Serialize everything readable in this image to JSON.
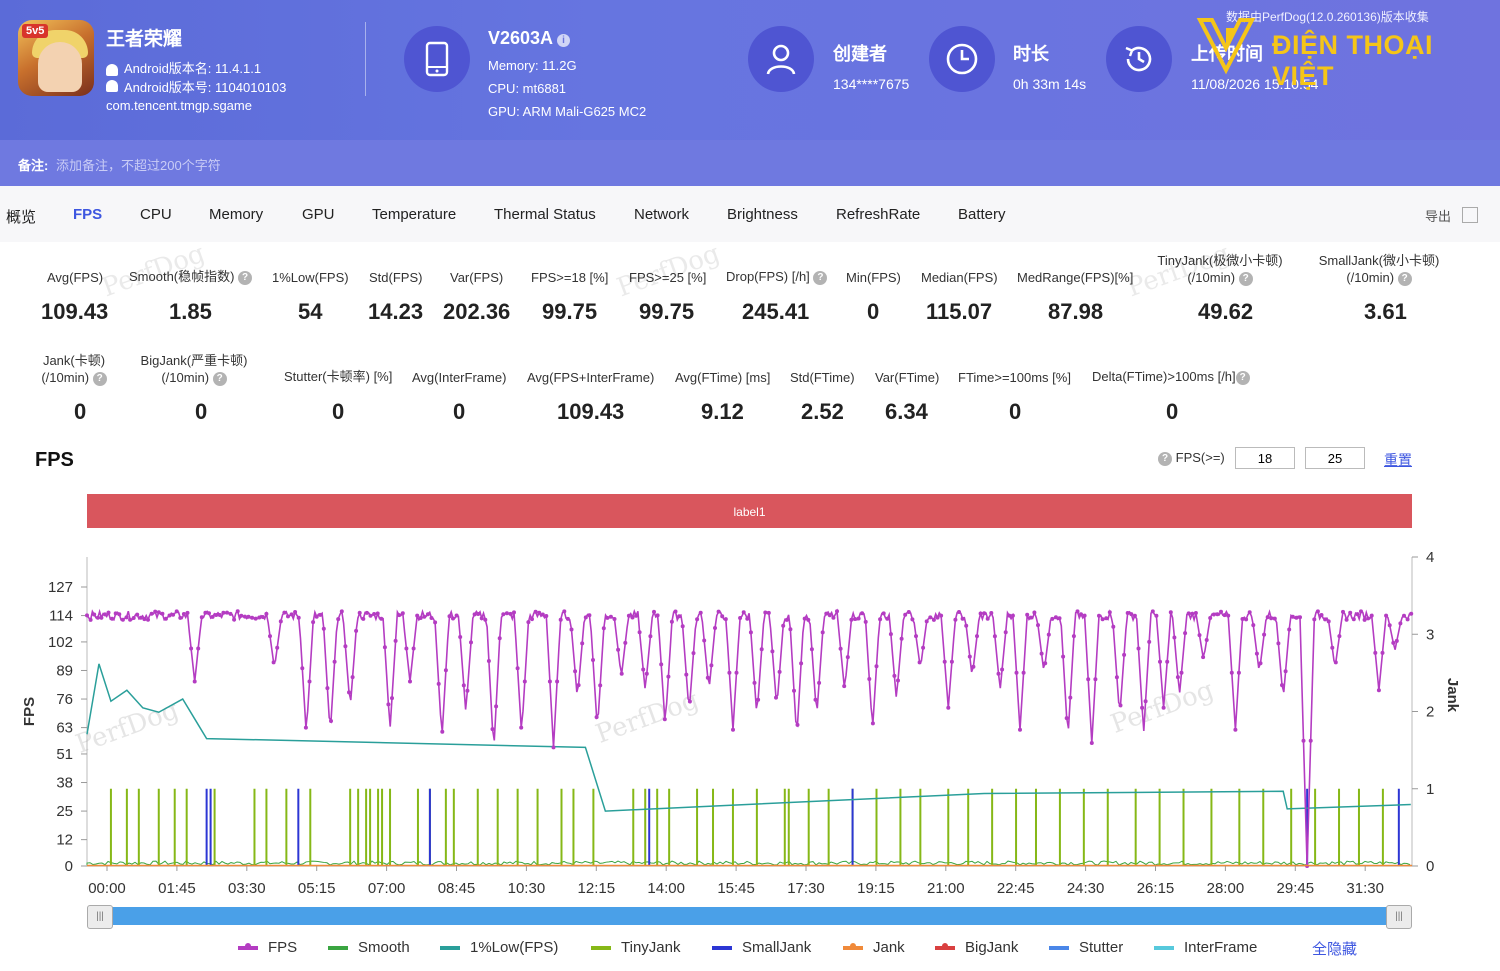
{
  "header": {
    "app_name": "王者荣耀",
    "app_version_name": "Android版本名: 11.4.1.1",
    "app_version_code": "Android版本号: 1104010103",
    "package": "com.tencent.tmgp.sgame",
    "app_badge": "5v5",
    "device_name": "V2603A",
    "memory": "Memory: 11.2G",
    "cpu": "CPU: mt6881",
    "gpu": "GPU: ARM Mali-G625 MC2",
    "creator_title": "创建者",
    "creator_value": "134****7675",
    "duration_title": "时长",
    "duration_value": "0h 33m 14s",
    "upload_title": "上传时间",
    "upload_value": "11/08/2026 15:10:54",
    "collect_note": "数据由PerfDog(12.0.260136)版本收集",
    "watermark": "ĐIỆN THOẠI VIỆT",
    "remark_label": "备注:",
    "remark_placeholder": "添加备注，不超过200个字符"
  },
  "tabs": [
    "概览",
    "FPS",
    "CPU",
    "Memory",
    "GPU",
    "Temperature",
    "Thermal Status",
    "Network",
    "Brightness",
    "RefreshRate",
    "Battery"
  ],
  "active_tab": "FPS",
  "export_label": "导出",
  "metrics_row1": [
    {
      "label": "Avg(FPS)",
      "value": "109.43"
    },
    {
      "label": "Smooth(稳帧指数)",
      "value": "1.85"
    },
    {
      "label": "1%Low(FPS)",
      "value": "54"
    },
    {
      "label": "Std(FPS)",
      "value": "14.23"
    },
    {
      "label": "Var(FPS)",
      "value": "202.36"
    },
    {
      "label": "FPS>=18 [%]",
      "value": "99.75"
    },
    {
      "label": "FPS>=25 [%]",
      "value": "99.75"
    },
    {
      "label": "Drop(FPS) [/h]",
      "value": "245.41"
    },
    {
      "label": "Min(FPS)",
      "value": "0"
    },
    {
      "label": "Median(FPS)",
      "value": "115.07"
    },
    {
      "label": "MedRange(FPS)[%]",
      "value": "87.98"
    },
    {
      "label": "TinyJank(极微小卡顿)",
      "label2": "(/10min)",
      "value": "49.62"
    },
    {
      "label": "SmallJank(微小卡顿)",
      "label2": "(/10min)",
      "value": "3.61"
    }
  ],
  "metrics_row2": [
    {
      "label": "Jank(卡顿)",
      "label2": "(/10min)",
      "value": "0"
    },
    {
      "label": "BigJank(严重卡顿)",
      "label2": "(/10min)",
      "value": "0"
    },
    {
      "label": "Stutter(卡顿率) [%]",
      "value": "0"
    },
    {
      "label": "Avg(InterFrame)",
      "value": "0"
    },
    {
      "label": "Avg(FPS+InterFrame)",
      "value": "109.43"
    },
    {
      "label": "Avg(FTime) [ms]",
      "value": "9.12"
    },
    {
      "label": "Std(FTime)",
      "value": "2.52"
    },
    {
      "label": "Var(FTime)",
      "value": "6.34"
    },
    {
      "label": "FTime>=100ms [%]",
      "value": "0"
    },
    {
      "label": "Delta(FTime)>100ms [/h]",
      "value": "0"
    }
  ],
  "fps_section_title": "FPS",
  "threshold_label": "FPS(>=)",
  "threshold_low": "18",
  "threshold_high": "25",
  "reset_label": "重置",
  "label_bar": "label1",
  "background_watermark": "PerfDog",
  "chart_data": {
    "type": "line",
    "x_unit": "mm:ss",
    "x_ticks": [
      "00:00",
      "01:45",
      "03:30",
      "05:15",
      "07:00",
      "08:45",
      "10:30",
      "12:15",
      "14:00",
      "15:45",
      "17:30",
      "19:15",
      "21:00",
      "22:45",
      "24:30",
      "26:15",
      "28:00",
      "29:45",
      "31:30"
    ],
    "y_left_label": "FPS",
    "y_left_ticks": [
      0,
      12,
      25,
      38,
      51,
      63,
      76,
      89,
      102,
      114,
      127
    ],
    "y_left_range": [
      0,
      127
    ],
    "y_right_label": "Jank",
    "y_right_ticks": [
      0,
      1,
      2,
      3,
      4
    ],
    "y_right_range": [
      0,
      4
    ],
    "x_range_minutes": [
      0,
      33.23
    ],
    "fps": {
      "baseline": 114,
      "dips": [
        {
          "t": 2.7,
          "v": 84
        },
        {
          "t": 4.7,
          "v": 90
        },
        {
          "t": 5.5,
          "v": 60
        },
        {
          "t": 6.1,
          "v": 60
        },
        {
          "t": 6.6,
          "v": 72
        },
        {
          "t": 7.6,
          "v": 62
        },
        {
          "t": 8.1,
          "v": 84
        },
        {
          "t": 8.9,
          "v": 58
        },
        {
          "t": 9.5,
          "v": 70
        },
        {
          "t": 10.2,
          "v": 52
        },
        {
          "t": 10.9,
          "v": 60
        },
        {
          "t": 11.7,
          "v": 54
        },
        {
          "t": 12.3,
          "v": 76
        },
        {
          "t": 12.8,
          "v": 62
        },
        {
          "t": 13.4,
          "v": 86
        },
        {
          "t": 14.0,
          "v": 80
        },
        {
          "t": 14.5,
          "v": 64
        },
        {
          "t": 15.1,
          "v": 70
        },
        {
          "t": 15.6,
          "v": 80
        },
        {
          "t": 16.2,
          "v": 62
        },
        {
          "t": 16.8,
          "v": 68
        },
        {
          "t": 17.3,
          "v": 72
        },
        {
          "t": 17.8,
          "v": 58
        },
        {
          "t": 18.3,
          "v": 68
        },
        {
          "t": 19.0,
          "v": 80
        },
        {
          "t": 19.7,
          "v": 62
        },
        {
          "t": 20.3,
          "v": 76
        },
        {
          "t": 20.9,
          "v": 90
        },
        {
          "t": 21.6,
          "v": 72
        },
        {
          "t": 22.2,
          "v": 86
        },
        {
          "t": 22.9,
          "v": 80
        },
        {
          "t": 23.4,
          "v": 62
        },
        {
          "t": 24.0,
          "v": 88
        },
        {
          "t": 24.6,
          "v": 58
        },
        {
          "t": 25.2,
          "v": 56
        },
        {
          "t": 25.9,
          "v": 68
        },
        {
          "t": 26.5,
          "v": 60
        },
        {
          "t": 27.0,
          "v": 72
        },
        {
          "t": 27.4,
          "v": 78
        },
        {
          "t": 28.0,
          "v": 94
        },
        {
          "t": 28.8,
          "v": 62
        },
        {
          "t": 29.4,
          "v": 88
        },
        {
          "t": 30.0,
          "v": 76
        },
        {
          "t": 30.6,
          "v": 0
        },
        {
          "t": 31.3,
          "v": 90
        },
        {
          "t": 32.4,
          "v": 80
        },
        {
          "t": 32.8,
          "v": 98
        }
      ]
    },
    "low1_fps": [
      {
        "t": 0.0,
        "v": 60
      },
      {
        "t": 0.3,
        "v": 92
      },
      {
        "t": 0.6,
        "v": 75
      },
      {
        "t": 1.0,
        "v": 80
      },
      {
        "t": 1.4,
        "v": 72
      },
      {
        "t": 1.8,
        "v": 70
      },
      {
        "t": 2.4,
        "v": 76
      },
      {
        "t": 2.7,
        "v": 67
      },
      {
        "t": 3.0,
        "v": 58
      },
      {
        "t": 12.5,
        "v": 54
      },
      {
        "t": 13.0,
        "v": 25
      },
      {
        "t": 22.5,
        "v": 33
      },
      {
        "t": 30.0,
        "v": 34
      },
      {
        "t": 30.1,
        "v": 26
      },
      {
        "t": 33.2,
        "v": 28
      }
    ],
    "tiny_jank_x": [
      0.6,
      1.0,
      1.3,
      1.8,
      2.2,
      2.5,
      3.2,
      4.2,
      4.5,
      5.0,
      5.6,
      6.6,
      6.8,
      7.0,
      7.1,
      7.3,
      7.4,
      7.6,
      8.3,
      8.6,
      9.0,
      9.2,
      9.8,
      10.3,
      10.8,
      11.3,
      11.9,
      12.2,
      12.7,
      13.7,
      14.0,
      14.3,
      14.6,
      15.3,
      15.7,
      16.2,
      16.8,
      17.5,
      17.6,
      18.1,
      18.6,
      19.2,
      19.8,
      20.4,
      20.9,
      21.6,
      22.1,
      22.7,
      23.3,
      23.8,
      24.4,
      25.0,
      25.6,
      26.3,
      26.9,
      27.5,
      28.2,
      28.9,
      29.5,
      30.2,
      30.8,
      31.4,
      31.9,
      32.5
    ],
    "small_jank_x": [
      3.0,
      3.1,
      5.3,
      8.6,
      14.1,
      19.2,
      30.6,
      32.9
    ],
    "jank_x": [],
    "big_jank_x": [],
    "legend": [
      {
        "name": "FPS",
        "color": "#b43cc2"
      },
      {
        "name": "Smooth",
        "color": "#3aa541"
      },
      {
        "name": "1%Low(FPS)",
        "color": "#2a9f9a"
      },
      {
        "name": "TinyJank",
        "color": "#86b817"
      },
      {
        "name": "SmallJank",
        "color": "#2c36d4"
      },
      {
        "name": "Jank",
        "color": "#f08a3a"
      },
      {
        "name": "BigJank",
        "color": "#d94040"
      },
      {
        "name": "Stutter",
        "color": "#4a86e8"
      },
      {
        "name": "InterFrame",
        "color": "#57c9dc"
      }
    ],
    "hide_all_label": "全隐藏"
  }
}
